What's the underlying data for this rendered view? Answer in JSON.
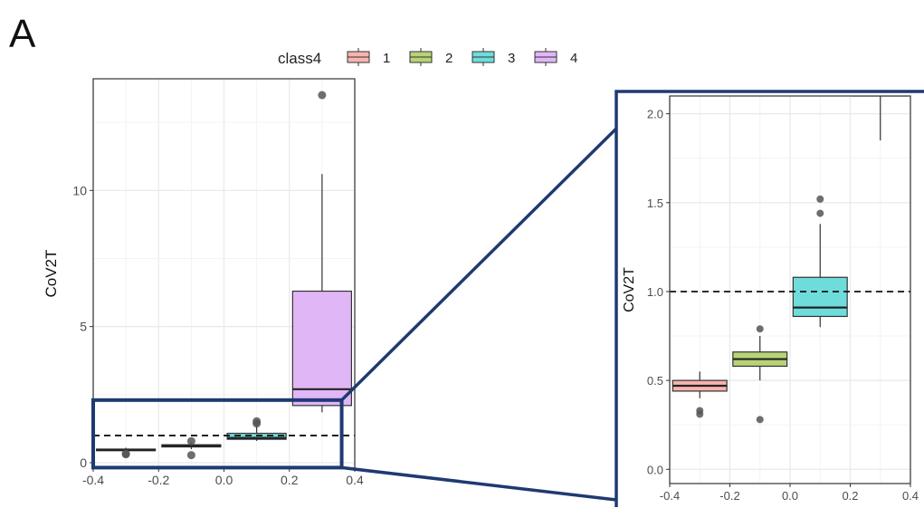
{
  "panel_label": "A",
  "legend": {
    "title": "class4",
    "entries": [
      {
        "label": "1",
        "color": "#f8b4ae"
      },
      {
        "label": "2",
        "color": "#b8d277"
      },
      {
        "label": "3",
        "color": "#6fdcdc"
      },
      {
        "label": "4",
        "color": "#e1b6f7"
      }
    ]
  },
  "colors": {
    "box_outline": "#333333",
    "grid": "#ebebeb",
    "zoom_frame": "#1f3a72",
    "outlier": "#555555"
  },
  "chart_data": [
    {
      "type": "box",
      "title": "",
      "xlabel": "",
      "ylabel": "CoV2T",
      "xlim": [
        -0.4,
        0.4
      ],
      "ylim": [
        -0.2,
        14.1
      ],
      "x_ticks": [
        -0.4,
        -0.2,
        0.0,
        0.2,
        0.4
      ],
      "x_tick_labels": [
        "-0.4",
        "-0.2",
        "0.0",
        "0.2",
        "0.4"
      ],
      "y_ticks": [
        0,
        5,
        10
      ],
      "y_tick_labels": [
        "0",
        "5",
        "10"
      ],
      "reference_line": {
        "y": 1.0,
        "style": "dashed"
      },
      "grid": true,
      "legend_position": "top",
      "series": [
        {
          "name": "1",
          "x": -0.3,
          "width": 0.18,
          "q1": 0.44,
          "median": 0.47,
          "q3": 0.5,
          "whisker_low": 0.4,
          "whisker_high": 0.55,
          "outliers": [
            0.31,
            0.33
          ]
        },
        {
          "name": "2",
          "x": -0.1,
          "width": 0.18,
          "q1": 0.58,
          "median": 0.62,
          "q3": 0.66,
          "whisker_low": 0.5,
          "whisker_high": 0.75,
          "outliers": [
            0.28,
            0.79
          ]
        },
        {
          "name": "3",
          "x": 0.1,
          "width": 0.18,
          "q1": 0.86,
          "median": 0.91,
          "q3": 1.08,
          "whisker_low": 0.8,
          "whisker_high": 1.38,
          "outliers": [
            1.44,
            1.52
          ]
        },
        {
          "name": "4",
          "x": 0.3,
          "width": 0.18,
          "q1": 2.1,
          "median": 2.7,
          "q3": 6.3,
          "whisker_low": 1.85,
          "whisker_high": 10.6,
          "outliers": [
            13.5
          ]
        }
      ]
    },
    {
      "type": "box",
      "title": "",
      "xlabel": "",
      "ylabel": "CoV2T",
      "xlim": [
        -0.4,
        0.4
      ],
      "ylim": [
        -0.08,
        2.1
      ],
      "x_ticks": [
        -0.4,
        -0.2,
        0.0,
        0.2,
        0.4
      ],
      "x_tick_labels": [
        "-0.4",
        "-0.2",
        "0.0",
        "0.2",
        "0.4"
      ],
      "y_ticks": [
        0,
        0.5,
        1.0,
        1.5,
        2.0
      ],
      "y_tick_labels": [
        "0.0",
        "0.5",
        "1.0",
        "1.5",
        "2.0"
      ],
      "reference_line": {
        "y": 1.0,
        "style": "dashed"
      },
      "grid": true,
      "series": [
        {
          "name": "1",
          "x": -0.3,
          "width": 0.18,
          "q1": 0.44,
          "median": 0.47,
          "q3": 0.5,
          "whisker_low": 0.4,
          "whisker_high": 0.55,
          "outliers": [
            0.31,
            0.33
          ]
        },
        {
          "name": "2",
          "x": -0.1,
          "width": 0.18,
          "q1": 0.58,
          "median": 0.62,
          "q3": 0.66,
          "whisker_low": 0.5,
          "whisker_high": 0.75,
          "outliers": [
            0.28,
            0.79
          ]
        },
        {
          "name": "3",
          "x": 0.1,
          "width": 0.18,
          "q1": 0.86,
          "median": 0.91,
          "q3": 1.08,
          "whisker_low": 0.8,
          "whisker_high": 1.38,
          "outliers": [
            1.44,
            1.52
          ]
        },
        {
          "name": "4",
          "x": 0.3,
          "width": 0.18,
          "q1": 2.1,
          "median": 2.7,
          "q3": 6.3,
          "whisker_low": 1.85,
          "whisker_high": 10.6,
          "outliers": [
            13.5
          ]
        }
      ]
    }
  ]
}
